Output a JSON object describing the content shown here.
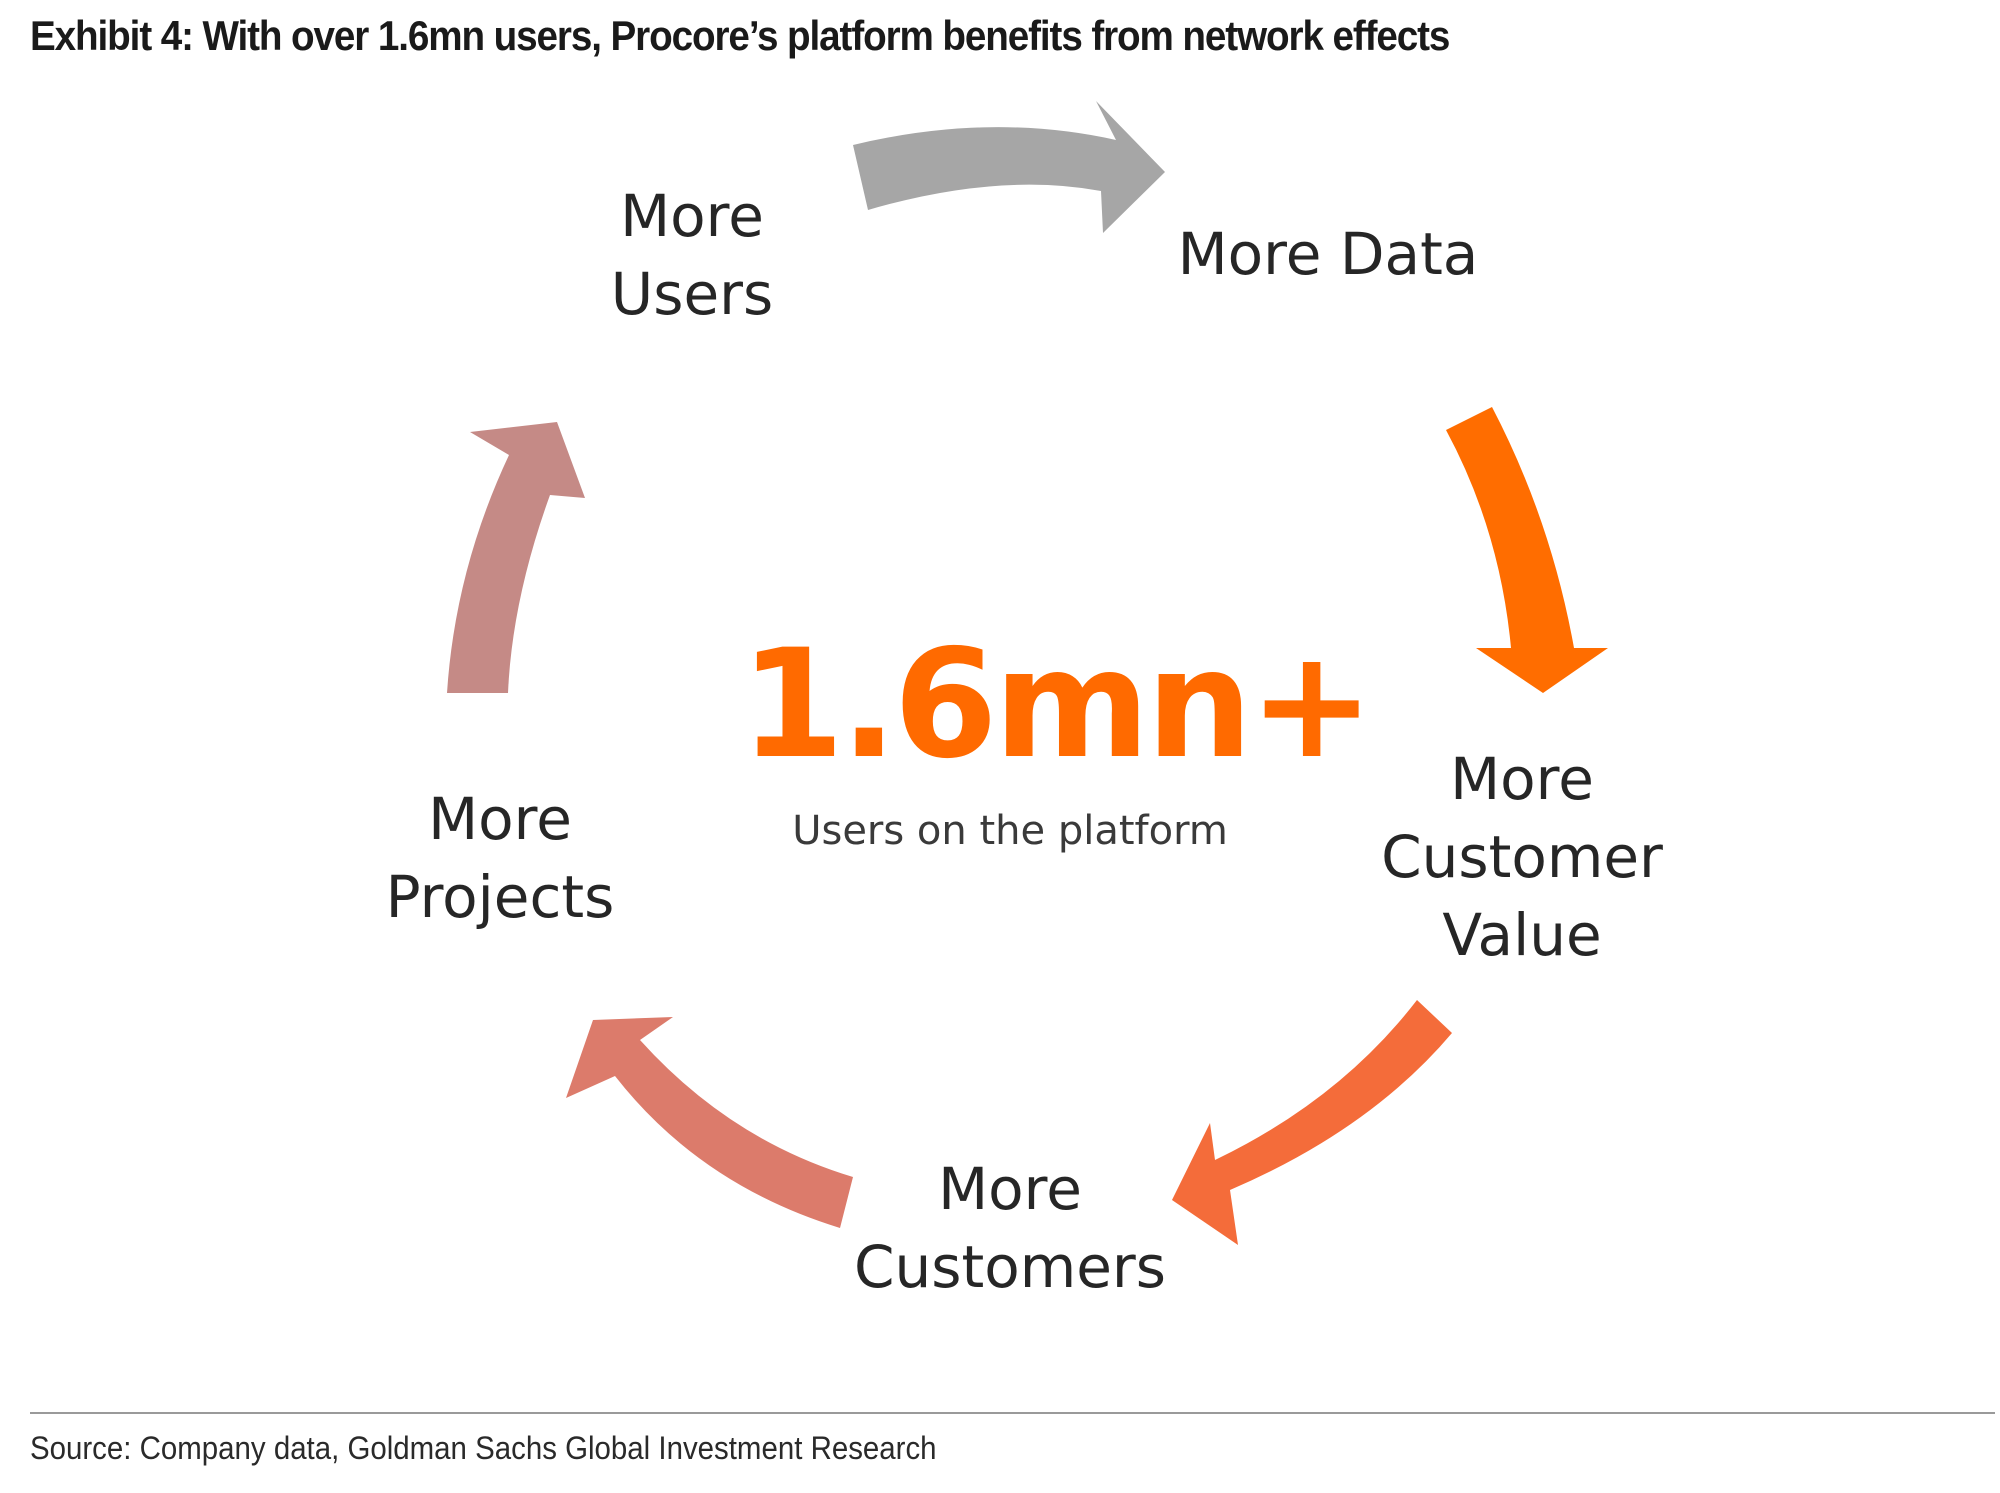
{
  "title": "Exhibit 4: With over 1.6mn users, Procore’s platform benefits from network effects",
  "center": {
    "value": "1.6mn+",
    "caption": "Users on the platform",
    "color": "#ff6a00"
  },
  "cycle": [
    {
      "lines": [
        "More",
        "Users"
      ]
    },
    {
      "lines": [
        "More Data"
      ]
    },
    {
      "lines": [
        "More",
        "Customer",
        "Value"
      ]
    },
    {
      "lines": [
        "More",
        "Customers"
      ]
    },
    {
      "lines": [
        "More",
        "Projects"
      ]
    }
  ],
  "arrow_colors": {
    "users_to_data": "#a6a6a6",
    "data_to_value": "#ff6d00",
    "value_to_customers": "#f46c3a",
    "customers_to_projects": "#dc7b6b",
    "projects_to_users": "#c58a86"
  },
  "source": "Source: Company data, Goldman Sachs Global Investment Research"
}
